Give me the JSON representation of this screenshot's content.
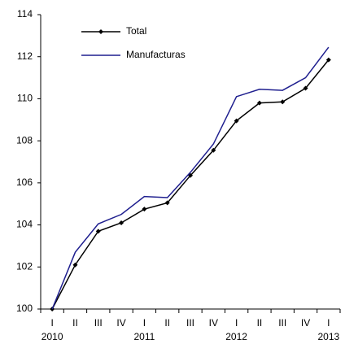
{
  "chart_data": {
    "type": "line",
    "categories": [
      "I",
      "II",
      "III",
      "IV",
      "I",
      "II",
      "III",
      "IV",
      "I",
      "II",
      "III",
      "IV",
      "I"
    ],
    "years": [
      "2010",
      null,
      null,
      null,
      "2011",
      null,
      null,
      null,
      "2012",
      null,
      null,
      null,
      "2013"
    ],
    "series": [
      {
        "name": "Total",
        "color": "#000000",
        "marker": "diamond",
        "values": [
          100.0,
          102.1,
          103.7,
          104.1,
          104.75,
          105.05,
          106.35,
          107.55,
          108.95,
          109.8,
          109.85,
          110.5,
          111.85
        ]
      },
      {
        "name": "Manufacturas",
        "color": "#1f1f8f",
        "values": [
          100.0,
          102.7,
          104.05,
          104.5,
          105.35,
          105.3,
          106.5,
          107.85,
          110.1,
          110.45,
          110.4,
          111.0,
          112.45
        ]
      }
    ],
    "ylim": [
      100,
      114
    ],
    "yticks": [
      100,
      102,
      104,
      106,
      108,
      110,
      112,
      114
    ],
    "grid": false,
    "legend": "upper left"
  }
}
